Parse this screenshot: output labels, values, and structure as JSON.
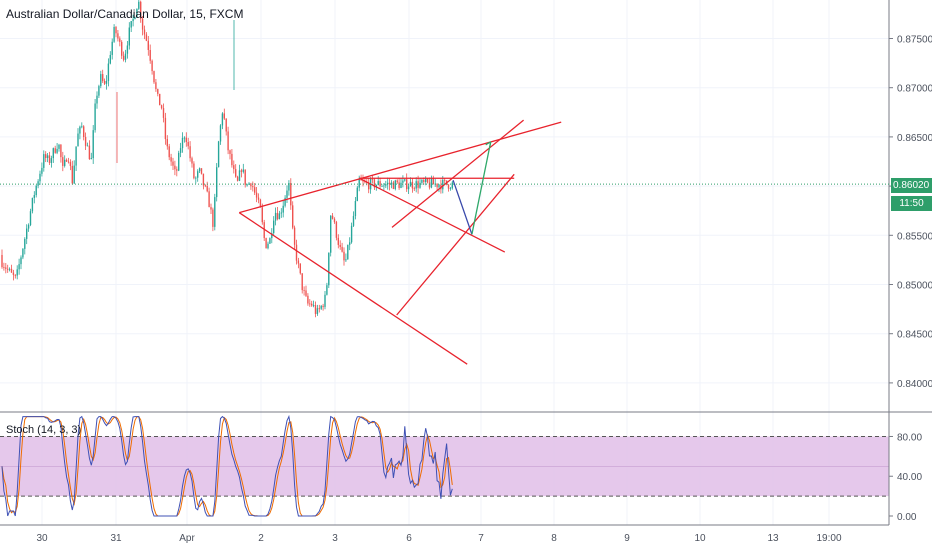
{
  "title": "Australian Dollar/Canadian Dollar, 15, FXCM",
  "current_price": "0.86020",
  "countdown": "11:50",
  "stoch_label": "Stoch (14, 3, 3)",
  "colors": {
    "up": "#26a69a",
    "down": "#ef5350",
    "drawing": "#e8232d",
    "price_line": "#2e9e6a",
    "stoch_k": "#3f51b5",
    "stoch_d": "#ef6c00",
    "stoch_band": "#e1bee7"
  },
  "chart_data": [
    {
      "type": "candlestick",
      "title": "Australian Dollar/Canadian Dollar, 15, FXCM",
      "x_tick_labels": [
        "30",
        "31",
        "Apr",
        "2",
        "3",
        "6",
        "7",
        "8",
        "9",
        "10",
        "13",
        "19:00"
      ],
      "y_tick_labels": [
        "0.87500",
        "0.87000",
        "0.86500",
        "0.86000",
        "0.85500",
        "0.85000",
        "0.84500",
        "0.84000"
      ],
      "ylim": [
        0.8375,
        0.8797
      ],
      "current_price": 0.8602,
      "price_path": [
        [
          -4,
          0.853
        ],
        [
          -1,
          0.851
        ],
        [
          0,
          0.8505
        ],
        [
          2,
          0.855
        ],
        [
          4,
          0.8595
        ],
        [
          6,
          0.863
        ],
        [
          7,
          0.8625
        ],
        [
          9,
          0.8645
        ],
        [
          10,
          0.8615
        ],
        [
          11,
          0.8635
        ],
        [
          12,
          0.8605
        ],
        [
          13,
          0.865
        ],
        [
          14,
          0.866
        ],
        [
          16,
          0.8625
        ],
        [
          17,
          0.869
        ],
        [
          18,
          0.871
        ],
        [
          19,
          0.87
        ],
        [
          20,
          0.8735
        ],
        [
          21,
          0.876
        ],
        [
          22,
          0.8745
        ],
        [
          23,
          0.873
        ],
        [
          24,
          0.8755
        ],
        [
          25,
          0.877
        ],
        [
          26,
          0.879
        ],
        [
          27,
          0.876
        ],
        [
          28,
          0.8745
        ],
        [
          29,
          0.872
        ],
        [
          30,
          0.869
        ],
        [
          31,
          0.868
        ],
        [
          32,
          0.864
        ],
        [
          33,
          0.8625
        ],
        [
          34,
          0.861
        ],
        [
          35,
          0.864
        ],
        [
          36,
          0.8655
        ],
        [
          37,
          0.863
        ],
        [
          38,
          0.8605
        ],
        [
          39,
          0.8615
        ],
        [
          40,
          0.86
        ],
        [
          41,
          0.8585
        ],
        [
          42,
          0.856
        ],
        [
          43,
          0.864
        ],
        [
          44,
          0.868
        ],
        [
          45,
          0.864
        ],
        [
          46,
          0.862
        ],
        [
          47,
          0.86
        ],
        [
          48,
          0.862
        ],
        [
          49,
          0.86
        ],
        [
          50,
          0.8605
        ],
        [
          51,
          0.859
        ],
        [
          52,
          0.8575
        ],
        [
          53,
          0.854
        ],
        [
          54,
          0.8545
        ],
        [
          55,
          0.8575
        ],
        [
          56,
          0.857
        ],
        [
          57,
          0.8585
        ],
        [
          58,
          0.8605
        ],
        [
          59,
          0.8545
        ],
        [
          60,
          0.852
        ],
        [
          61,
          0.8495
        ],
        [
          62,
          0.848
        ],
        [
          63,
          0.848
        ],
        [
          64,
          0.847
        ],
        [
          65,
          0.8478
        ],
        [
          66,
          0.8488
        ],
        [
          67,
          0.8575
        ],
        [
          68,
          0.8555
        ],
        [
          69,
          0.8535
        ],
        [
          70,
          0.852
        ],
        [
          71,
          0.8545
        ],
        [
          72,
          0.8575
        ],
        [
          73,
          0.8605
        ],
        [
          74,
          0.8602
        ]
      ],
      "annotations": [
        {
          "shape": "trendline",
          "color": "red",
          "points": [
            [
              47.5,
              0.8573
            ],
            [
              96,
              0.8419
            ]
          ]
        },
        {
          "shape": "trendline",
          "color": "red",
          "points": [
            [
              47.5,
              0.8573
            ],
            [
              116,
              0.8665
            ]
          ]
        },
        {
          "shape": "trendline",
          "color": "red",
          "points": [
            [
              73,
              0.8608
            ],
            [
              106,
              0.8608
            ]
          ]
        },
        {
          "shape": "trendline",
          "color": "red",
          "points": [
            [
              73,
              0.8608
            ],
            [
              104,
              0.8533
            ]
          ]
        },
        {
          "shape": "trendline",
          "color": "red",
          "points": [
            [
              81,
              0.8469
            ],
            [
              106,
              0.8612
            ]
          ]
        },
        {
          "shape": "trendline",
          "color": "red",
          "points": [
            [
              80,
              0.8558
            ],
            [
              108,
              0.8667
            ]
          ]
        },
        {
          "shape": "projection",
          "color": "blue",
          "points": [
            [
              93,
              0.8606
            ],
            [
              97,
              0.8551
            ]
          ]
        },
        {
          "shape": "projection",
          "color": "green",
          "points": [
            [
              97,
              0.8551
            ],
            [
              101,
              0.8645
            ]
          ]
        }
      ]
    },
    {
      "type": "line",
      "title": "Stoch (14, 3, 3)",
      "y_tick_labels": [
        "80.00",
        "40.00",
        "0.00"
      ],
      "ylim": [
        -5,
        100
      ],
      "band": [
        20,
        80
      ]
    }
  ]
}
